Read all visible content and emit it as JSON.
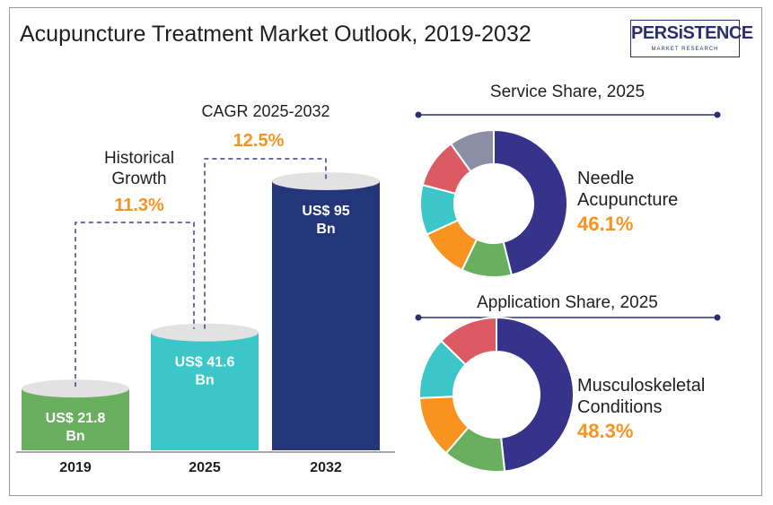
{
  "header": {
    "title": "Acupuncture Treatment Market Outlook, 2019-2032",
    "logo_main": "PERSiSTENCE",
    "logo_sub": "MARKET RESEARCH"
  },
  "colors": {
    "green": "#6aaf5f",
    "teal": "#3cc6c8",
    "navy": "#24367a",
    "orange": "#f7931e",
    "dash": "#3a3f8f",
    "donut_navy": "#35348a",
    "donut_green": "#6aaf5f",
    "donut_orange": "#f7931e",
    "donut_teal": "#3cc6c8",
    "donut_red": "#dc5b62",
    "donut_gray": "#8b8fa5"
  },
  "chart_data": [
    {
      "type": "bar",
      "categories": [
        "2019",
        "2025",
        "2032"
      ],
      "values": [
        21.8,
        41.6,
        95
      ],
      "value_labels": [
        "US$ 21.8 Bn",
        "US$ 41.6 Bn",
        "US$ 95 Bn"
      ],
      "annotations": [
        {
          "label": "Historical Growth",
          "value": "11.3%"
        },
        {
          "label": "CAGR 2025-2032",
          "value": "12.5%"
        }
      ]
    },
    {
      "type": "pie",
      "title": "Service Share, 2025",
      "highlight_label": "Needle Acupuncture",
      "highlight_value": "46.1%",
      "slices": [
        46.1,
        11,
        11,
        11,
        11,
        9.9
      ],
      "slice_colors": [
        "#35348a",
        "#6aaf5f",
        "#f7931e",
        "#3cc6c8",
        "#dc5b62",
        "#8b8fa5"
      ]
    },
    {
      "type": "pie",
      "title": "Application Share, 2025",
      "highlight_label": "Musculoskeletal Conditions",
      "highlight_value": "48.3%",
      "slices": [
        48.3,
        13,
        13,
        13,
        12.7
      ],
      "slice_colors": [
        "#35348a",
        "#6aaf5f",
        "#f7931e",
        "#3cc6c8",
        "#dc5b62"
      ]
    }
  ]
}
